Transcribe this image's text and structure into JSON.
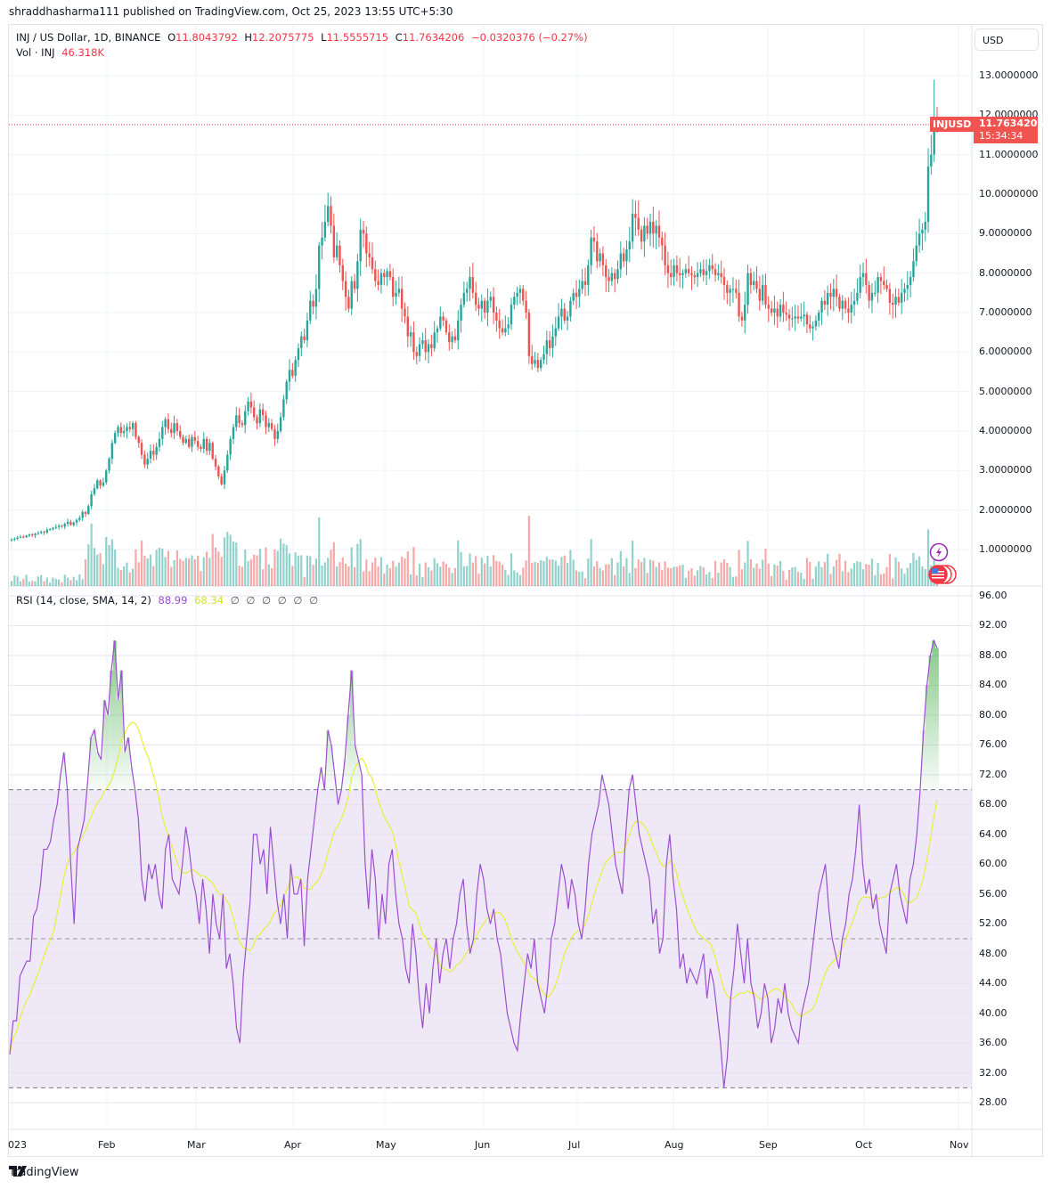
{
  "header": {
    "published": "shraddhasharma111 published on TradingView.com, Oct 25, 2023 13:55 UTC+5:30"
  },
  "legend": {
    "symbol": "INJ / US Dollar, 1D, BINANCE",
    "o_label": "O",
    "o": "11.8043792",
    "h_label": "H",
    "h": "12.2075775",
    "l_label": "L",
    "l": "11.5555715",
    "c_label": "C",
    "c": "11.7634206",
    "change": "−0.0320376 (−0.27%)",
    "vol_label": "Vol · INJ",
    "vol": "46.318K"
  },
  "rsi_legend": {
    "label": "RSI (14, close, SMA, 14, 2)",
    "rsi": "88.99",
    "sma": "68.34",
    "extras": "∅ ∅ ∅ ∅ ∅ ∅"
  },
  "price_axis": {
    "currency": "USD",
    "ticks": [
      "13.0000000",
      "12.0000000",
      "11.0000000",
      "10.0000000",
      "9.0000000",
      "8.0000000",
      "7.0000000",
      "6.0000000",
      "5.0000000",
      "4.0000000",
      "3.0000000",
      "2.0000000",
      "1.0000000"
    ],
    "last_symbol": "INJUSD",
    "last_price": "11.7634206",
    "countdown": "15:34:34"
  },
  "rsi_axis": {
    "ticks": [
      "96.00",
      "92.00",
      "88.00",
      "84.00",
      "80.00",
      "76.00",
      "72.00",
      "68.00",
      "64.00",
      "60.00",
      "56.00",
      "52.00",
      "48.00",
      "44.00",
      "40.00",
      "36.00",
      "32.00",
      "28.00"
    ]
  },
  "time_axis": {
    "labels": [
      "2023",
      "Feb",
      "Mar",
      "Apr",
      "May",
      "Jun",
      "Jul",
      "Aug",
      "Sep",
      "Oct",
      "Nov"
    ]
  },
  "footer": {
    "brand": "TradingView"
  },
  "colors": {
    "up": "#26a69a",
    "down": "#ef5350",
    "rsi": "#9c4fd0",
    "rsi_sma": "#e6f03a",
    "band": "#ede7f6"
  },
  "chart_data": [
    {
      "type": "candlestick",
      "title": "INJ / US Dollar, 1D, BINANCE",
      "xlabel": "",
      "ylabel": "USD",
      "ylim": [
        0.5,
        13.3
      ],
      "x_range": [
        "2023-01-01",
        "2023-10-25"
      ],
      "closes": [
        1.25,
        1.27,
        1.3,
        1.32,
        1.31,
        1.35,
        1.38,
        1.36,
        1.4,
        1.42,
        1.45,
        1.43,
        1.5,
        1.52,
        1.55,
        1.57,
        1.6,
        1.58,
        1.65,
        1.7,
        1.62,
        1.68,
        1.75,
        1.8,
        1.95,
        1.9,
        2.1,
        2.4,
        2.55,
        2.75,
        2.62,
        2.7,
        3.0,
        3.3,
        3.7,
        3.95,
        4.1,
        3.95,
        4.0,
        4.1,
        4.05,
        4.2,
        3.85,
        3.7,
        3.4,
        3.15,
        3.3,
        3.5,
        3.4,
        3.6,
        3.8,
        4.1,
        4.3,
        4.05,
        3.95,
        4.2,
        4.0,
        3.85,
        3.7,
        3.8,
        3.6,
        3.85,
        3.75,
        3.6,
        3.55,
        3.8,
        3.5,
        3.7,
        3.3,
        3.1,
        2.85,
        2.65,
        3.0,
        3.4,
        3.8,
        4.1,
        4.4,
        4.2,
        4.15,
        4.5,
        4.75,
        4.6,
        4.35,
        4.2,
        4.55,
        4.4,
        4.1,
        4.2,
        4.05,
        3.8,
        4.0,
        4.35,
        4.8,
        5.25,
        5.55,
        5.4,
        5.8,
        6.1,
        6.4,
        6.3,
        6.8,
        7.3,
        7.15,
        7.6,
        8.7,
        8.9,
        9.3,
        9.7,
        9.2,
        8.4,
        8.7,
        8.2,
        7.8,
        7.4,
        7.1,
        7.8,
        7.6,
        8.3,
        9.1,
        9.0,
        8.5,
        8.4,
        8.1,
        7.8,
        7.7,
        8.0,
        7.9,
        8.05,
        7.9,
        7.4,
        7.5,
        7.6,
        7.1,
        6.9,
        6.4,
        6.5,
        6.0,
        5.9,
        6.2,
        6.3,
        6.0,
        6.2,
        6.1,
        6.5,
        6.6,
        6.9,
        6.8,
        6.5,
        6.25,
        6.4,
        6.3,
        6.8,
        7.2,
        7.5,
        7.6,
        7.9,
        7.5,
        7.2,
        7.1,
        7.3,
        7.0,
        7.3,
        7.4,
        7.0,
        6.8,
        6.6,
        6.5,
        6.6,
        6.7,
        7.2,
        7.4,
        7.5,
        7.6,
        7.3,
        7.0,
        5.9,
        5.7,
        5.8,
        5.6,
        5.8,
        5.95,
        6.3,
        6.1,
        6.4,
        6.6,
        6.9,
        7.1,
        6.8,
        6.9,
        7.3,
        7.5,
        7.4,
        7.6,
        7.8,
        7.7,
        8.2,
        8.9,
        8.8,
        8.3,
        8.5,
        8.2,
        7.9,
        7.8,
        8.0,
        7.85,
        8.1,
        8.5,
        8.3,
        8.6,
        8.8,
        9.5,
        9.4,
        9.1,
        8.8,
        9.2,
        9.0,
        9.3,
        9.0,
        9.2,
        8.9,
        8.7,
        8.2,
        8.0,
        7.9,
        8.2,
        8.0,
        7.95,
        8.0,
        8.1,
        8.0,
        7.95,
        7.9,
        8.0,
        8.1,
        7.95,
        8.05,
        8.2,
        8.1,
        7.95,
        8.0,
        7.9,
        7.7,
        7.5,
        7.6,
        7.6,
        7.5,
        6.9,
        6.8,
        7.2,
        8.0,
        7.7,
        7.8,
        7.6,
        7.3,
        7.7,
        7.2,
        7.1,
        7.0,
        7.1,
        6.9,
        7.2,
        7.0,
        6.95,
        6.85,
        6.85,
        6.9,
        6.85,
        6.9,
        6.95,
        6.7,
        6.6,
        6.65,
        6.8,
        7.0,
        7.3,
        7.2,
        7.5,
        7.4,
        7.6,
        7.4,
        7.1,
        7.3,
        7.1,
        7.0,
        7.2,
        7.3,
        7.5,
        7.9,
        8.0,
        7.7,
        7.3,
        7.5,
        7.5,
        7.9,
        7.8,
        7.7,
        7.6,
        7.25,
        7.2,
        7.4,
        7.25,
        7.5,
        7.6,
        7.7,
        7.9,
        8.3,
        8.7,
        9.0,
        9.1,
        9.3,
        10.7,
        11.0,
        11.8,
        11.76
      ],
      "last": {
        "open": 11.8043792,
        "high": 12.2075775,
        "low": 11.5555715,
        "close": 11.7634206,
        "volume": "46.318K"
      }
    },
    {
      "type": "line",
      "title": "RSI (14, close, SMA, 14, 2)",
      "ylim": [
        26,
        98
      ],
      "bands": {
        "upper": 70,
        "middle": 50,
        "lower": 30
      },
      "series": [
        {
          "name": "RSI",
          "last": 88.99
        },
        {
          "name": "RSI-based MA",
          "last": 68.34
        }
      ],
      "rsi": [
        34.5,
        39,
        39,
        45,
        46,
        47,
        47,
        53,
        54,
        57,
        62,
        62,
        63,
        66,
        68,
        72,
        75,
        70,
        60,
        52,
        62,
        64,
        66,
        71,
        77,
        78,
        75,
        74,
        82,
        80,
        86,
        90,
        82,
        86,
        75,
        77,
        73,
        70,
        66,
        58,
        55,
        60,
        58,
        60,
        56,
        54,
        62,
        64,
        58,
        57,
        56,
        60,
        65,
        62,
        58,
        56,
        52,
        58,
        54,
        48,
        56,
        52,
        50,
        56,
        46,
        48,
        44,
        38,
        36,
        45,
        50,
        55,
        64,
        64,
        60,
        62,
        56,
        65,
        60,
        55,
        52,
        56,
        50,
        60,
        56,
        56,
        58,
        49,
        58,
        62,
        66,
        70,
        73,
        70,
        78,
        76,
        72,
        68,
        70,
        74,
        80,
        86,
        76,
        74,
        72,
        60,
        54,
        62,
        58,
        50,
        56,
        52,
        60,
        62,
        56,
        52,
        50,
        46,
        44,
        52,
        48,
        42,
        38,
        44,
        40,
        46,
        50,
        44,
        48,
        50,
        46,
        50,
        52,
        56,
        58,
        52,
        48,
        50,
        56,
        60,
        58,
        54,
        52,
        54,
        50,
        48,
        44,
        40,
        38,
        36,
        35,
        40,
        44,
        48,
        46,
        50,
        44,
        42,
        40,
        44,
        50,
        52,
        56,
        60,
        58,
        54,
        58,
        56,
        52,
        50,
        54,
        60,
        64,
        66,
        68,
        72,
        70,
        68,
        64,
        60,
        58,
        56,
        64,
        70,
        72,
        68,
        64,
        62,
        60,
        58,
        52,
        54,
        48,
        50,
        60,
        64,
        58,
        54,
        46,
        48,
        44,
        46,
        45,
        44,
        46,
        48,
        42,
        46,
        44,
        40,
        36,
        30,
        34,
        42,
        46,
        52,
        48,
        44,
        50,
        44,
        42,
        38,
        40,
        44,
        42,
        36,
        38,
        42,
        40,
        44,
        40,
        38,
        37,
        36,
        40,
        42,
        44,
        48,
        52,
        56,
        58,
        60,
        54,
        50,
        48,
        46,
        50,
        52,
        56,
        58,
        62,
        68,
        60,
        56,
        58,
        54,
        56,
        52,
        50,
        48,
        56,
        58,
        60,
        56,
        54,
        52,
        58,
        60,
        64,
        70,
        78,
        84,
        88,
        90,
        89
      ]
    }
  ]
}
